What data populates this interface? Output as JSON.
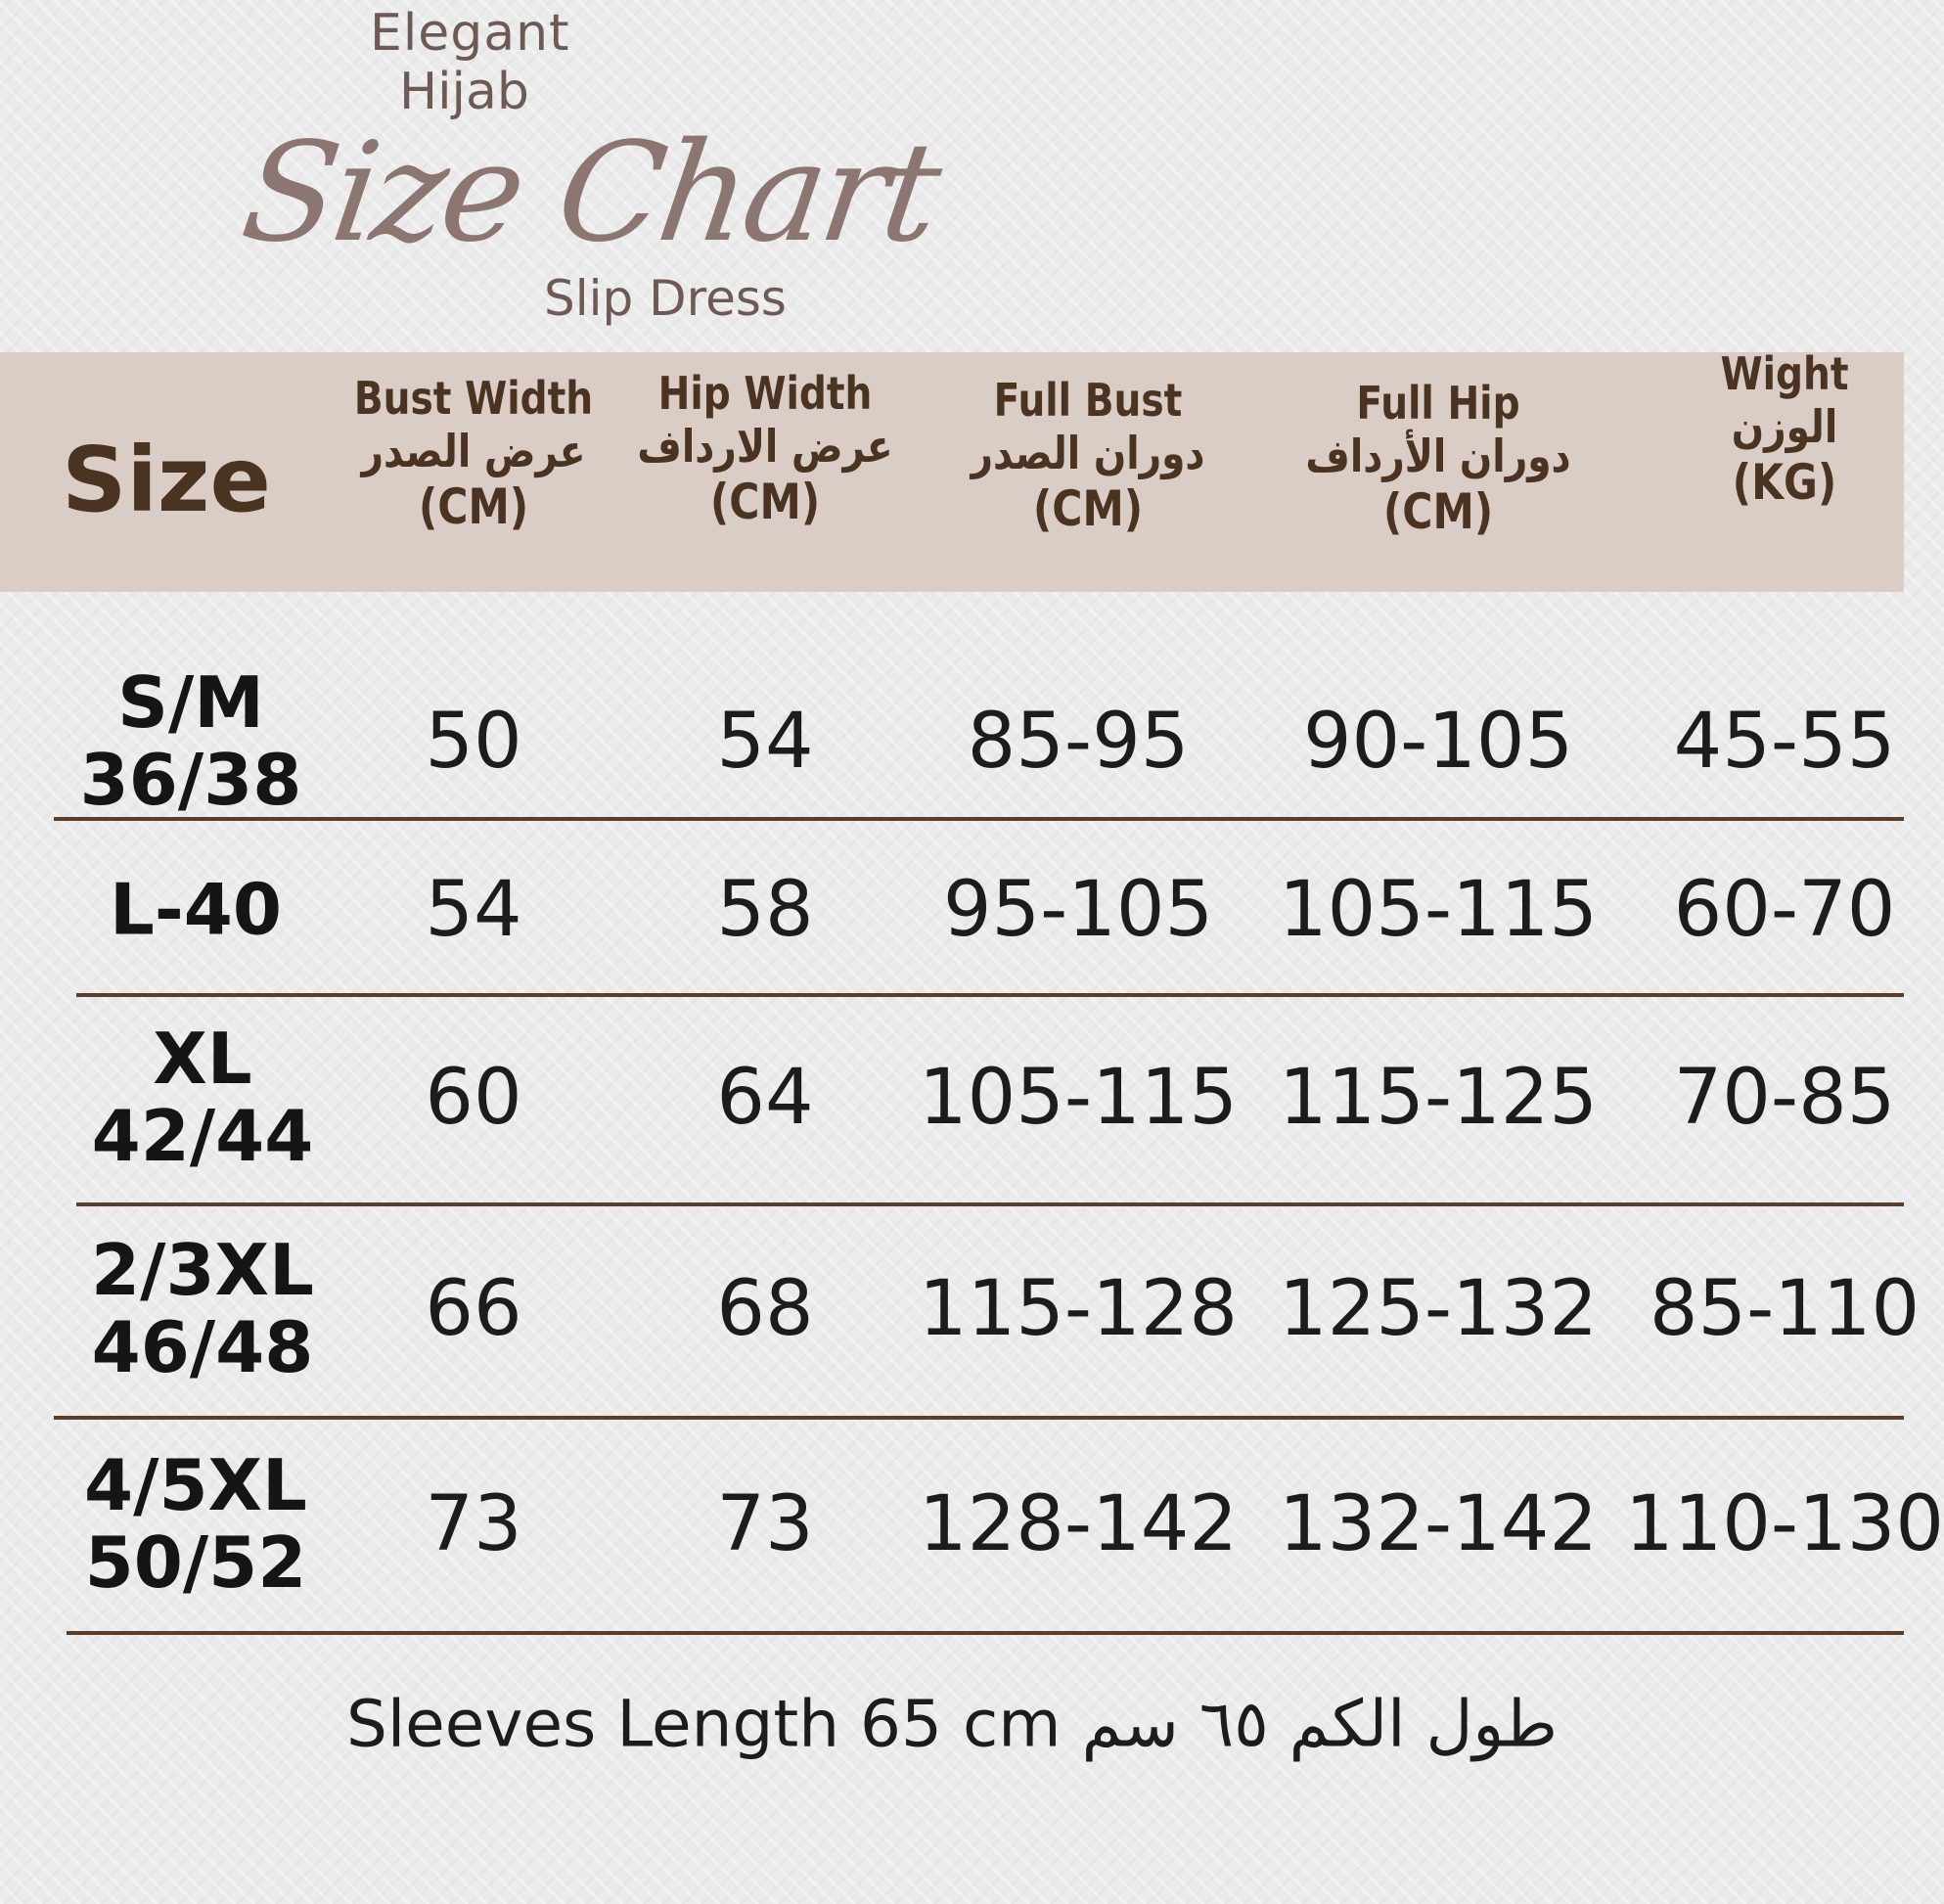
{
  "brand": {
    "line1": "Elegant",
    "line2": "Hijab",
    "script_title": "Size Chart",
    "subtitle": "Slip Dress"
  },
  "header": {
    "size": "Size",
    "columns": [
      {
        "en": "Bust Width",
        "ar": "عرض الصدر",
        "unit": "(CM)"
      },
      {
        "en": "Hip Width",
        "ar": "عرض الارداف",
        "unit": "(CM)"
      },
      {
        "en": "Full Bust",
        "ar": "دوران الصدر",
        "unit": "(CM)"
      },
      {
        "en": "Full Hip",
        "ar": "دوران الأرداف",
        "unit": "(CM)"
      },
      {
        "en": "Wight",
        "ar": "الوزن",
        "unit": "(KG)"
      }
    ]
  },
  "rows": [
    {
      "size": [
        "S/M",
        "36/38"
      ],
      "values": [
        "50",
        "54",
        "85-95",
        "90-105",
        "45-55"
      ]
    },
    {
      "size": [
        "L-40"
      ],
      "values": [
        "54",
        "58",
        "95-105",
        "105-115",
        "60-70"
      ]
    },
    {
      "size": [
        "XL",
        "42/44"
      ],
      "values": [
        "60",
        "64",
        "105-115",
        "115-125",
        "70-85"
      ]
    },
    {
      "size": [
        "2/3XL",
        "46/48"
      ],
      "values": [
        "66",
        "68",
        "115-128",
        "125-132",
        "85-110"
      ]
    },
    {
      "size": [
        "4/5XL",
        "50/52"
      ],
      "values": [
        "73",
        "73",
        "128-142",
        "132-142",
        "110-130"
      ]
    }
  ],
  "footer": "Sleeves Length 65 cm طول الكم ٦٥ سم",
  "colors": {
    "band": "#d9cdc5",
    "heading": "#4b3322",
    "rule": "#5a3e2b",
    "background": "#ebebeb"
  }
}
